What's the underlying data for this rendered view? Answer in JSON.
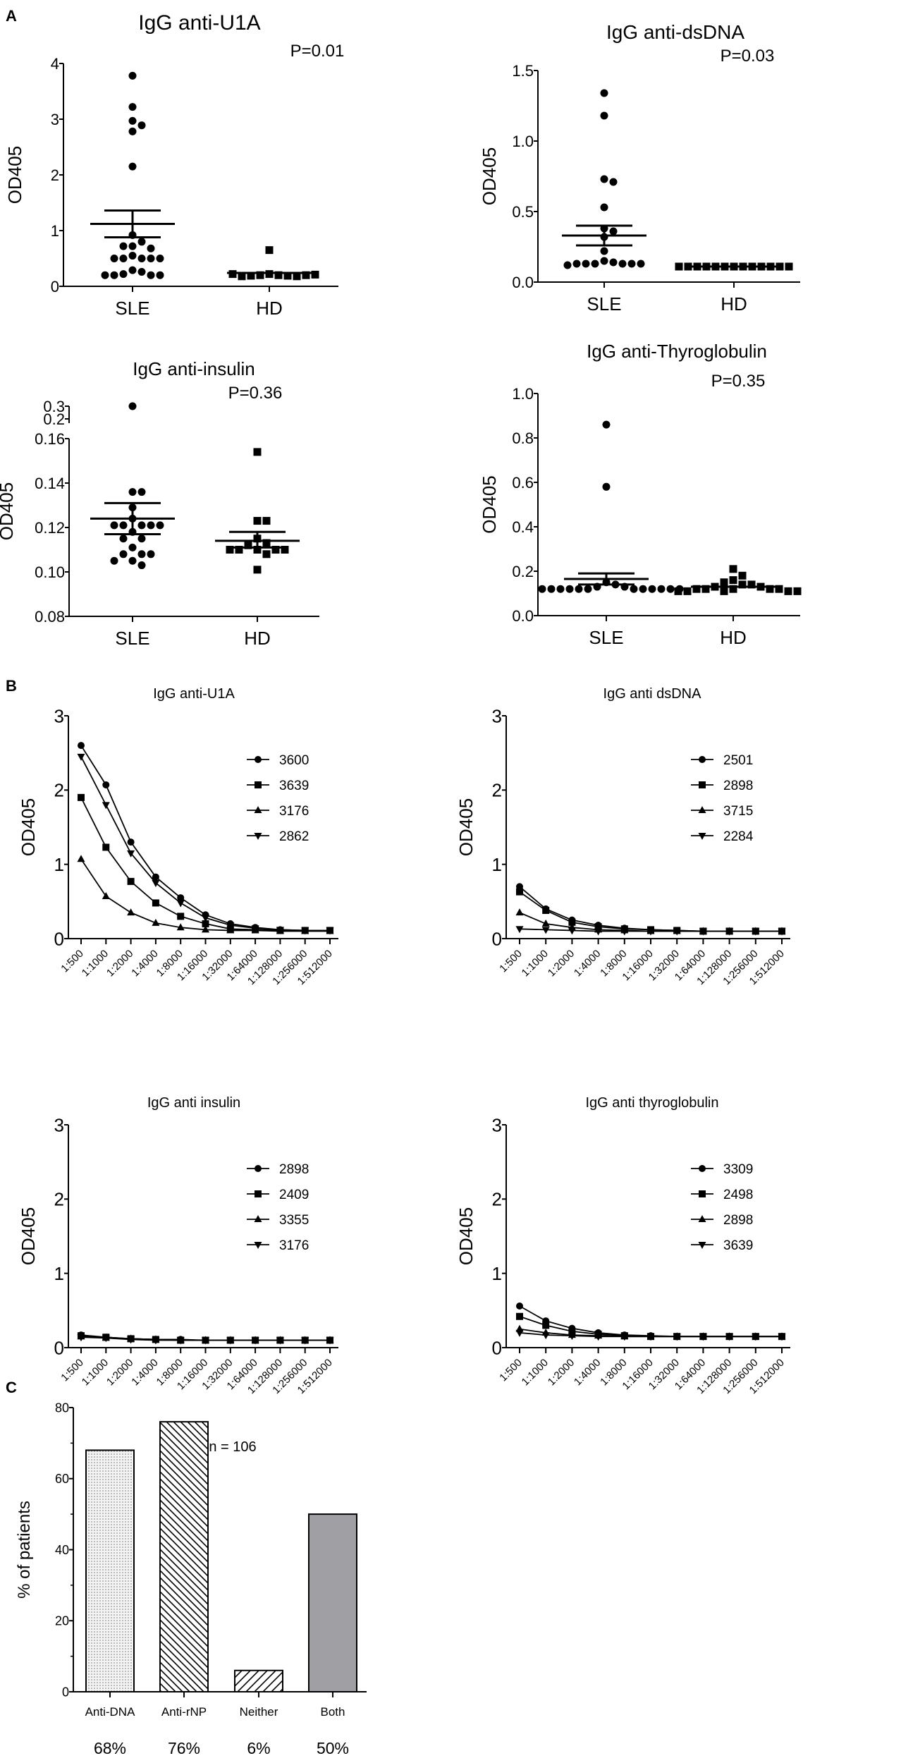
{
  "panel_labels": [
    "A",
    "B",
    "C"
  ],
  "chart_data": [
    {
      "type": "scatter",
      "panel": "A",
      "title": "IgG anti-U1A",
      "ylabel": "OD405",
      "ylim": [
        0,
        4
      ],
      "yticks": [
        "0",
        "1",
        "2",
        "3",
        "4"
      ],
      "ytick_values": [
        0,
        1,
        2,
        3,
        4
      ],
      "categories": [
        "SLE",
        "HD"
      ],
      "pvalue": "P=0.01",
      "groups": [
        {
          "name": "SLE",
          "marker": "circle",
          "values": [
            3.78,
            3.22,
            2.97,
            2.89,
            2.78,
            2.15,
            0.92,
            0.8,
            0.72,
            0.72,
            0.68,
            0.55,
            0.5,
            0.5,
            0.5,
            0.5,
            0.5,
            0.29,
            0.26,
            0.22,
            0.2,
            0.2,
            0.2,
            0.2
          ],
          "mean": 1.12,
          "sem_low": 0.88,
          "sem_high": 1.36
        },
        {
          "name": "HD",
          "marker": "square",
          "values": [
            0.65,
            0.22,
            0.2,
            0.2,
            0.19,
            0.19,
            0.18,
            0.18,
            0.2,
            0.22,
            0.21
          ],
          "mean": 0.24,
          "sem_low": 0.24,
          "sem_high": 0.24
        }
      ]
    },
    {
      "type": "scatter",
      "panel": "A",
      "title": "IgG anti-dsDNA",
      "ylabel": "OD405",
      "ylim": [
        0,
        1.5
      ],
      "yticks": [
        "0.0",
        "0.5",
        "1.0",
        "1.5"
      ],
      "ytick_values": [
        0,
        0.5,
        1,
        1.5
      ],
      "categories": [
        "SLE",
        "HD"
      ],
      "pvalue": "P=0.03",
      "groups": [
        {
          "name": "SLE",
          "marker": "circle",
          "values": [
            1.34,
            1.18,
            0.73,
            0.71,
            0.53,
            0.38,
            0.36,
            0.32,
            0.22,
            0.15,
            0.14,
            0.13,
            0.13,
            0.13,
            0.13,
            0.13,
            0.13,
            0.12
          ],
          "mean": 0.33,
          "sem_low": 0.26,
          "sem_high": 0.4
        },
        {
          "name": "HD",
          "marker": "square",
          "values": [
            0.11,
            0.11,
            0.11,
            0.11,
            0.11,
            0.11,
            0.11,
            0.11,
            0.11,
            0.11,
            0.11,
            0.11,
            0.11
          ],
          "mean": 0.11,
          "sem_low": 0.11,
          "sem_high": 0.11
        }
      ]
    },
    {
      "type": "scatter",
      "panel": "A",
      "title": "IgG anti-insulin",
      "ylabel": "OD405",
      "ylim": [
        0.08,
        0.3
      ],
      "axis_break": [
        0.16,
        0.2
      ],
      "yticks": [
        "0.08",
        "0.10",
        "0.12",
        "0.14",
        "0.16",
        "0.2",
        "0.3"
      ],
      "ytick_values": [
        0.08,
        0.1,
        0.12,
        0.14,
        0.16,
        0.2,
        0.3
      ],
      "categories": [
        "SLE",
        "HD"
      ],
      "pvalue": "P=0.36",
      "groups": [
        {
          "name": "SLE",
          "marker": "circle",
          "values": [
            0.3,
            0.136,
            0.136,
            0.129,
            0.124,
            0.121,
            0.121,
            0.121,
            0.121,
            0.121,
            0.118,
            0.115,
            0.115,
            0.111,
            0.108,
            0.108,
            0.108,
            0.105,
            0.105,
            0.103
          ],
          "mean": 0.124,
          "sem_low": 0.117,
          "sem_high": 0.131
        },
        {
          "name": "HD",
          "marker": "square",
          "values": [
            0.154,
            0.123,
            0.123,
            0.115,
            0.113,
            0.112,
            0.11,
            0.11,
            0.11,
            0.11,
            0.11,
            0.108,
            0.101
          ],
          "mean": 0.114,
          "sem_low": 0.111,
          "sem_high": 0.118
        }
      ]
    },
    {
      "type": "scatter",
      "panel": "A",
      "title": "IgG anti-Thyroglobulin",
      "ylabel": "OD405",
      "ylim": [
        0,
        1
      ],
      "yticks": [
        "0.0",
        "0.2",
        "0.4",
        "0.6",
        "0.8",
        "1.0"
      ],
      "ytick_values": [
        0,
        0.2,
        0.4,
        0.6,
        0.8,
        1
      ],
      "categories": [
        "SLE",
        "HD"
      ],
      "pvalue": "P=0.35",
      "groups": [
        {
          "name": "SLE",
          "marker": "circle",
          "values": [
            0.86,
            0.58,
            0.15,
            0.14,
            0.13,
            0.13,
            0.12,
            0.12,
            0.12,
            0.12,
            0.12,
            0.12,
            0.12,
            0.12,
            0.12,
            0.12,
            0.12,
            0.12
          ],
          "mean": 0.165,
          "sem_low": 0.14,
          "sem_high": 0.19
        },
        {
          "name": "HD",
          "marker": "square",
          "values": [
            0.21,
            0.18,
            0.16,
            0.15,
            0.14,
            0.14,
            0.13,
            0.13,
            0.12,
            0.12,
            0.12,
            0.12,
            0.12,
            0.11,
            0.11,
            0.11,
            0.11,
            0.11
          ],
          "mean": 0.13,
          "sem_low": 0.13,
          "sem_high": 0.13
        }
      ]
    },
    {
      "type": "line",
      "panel": "B",
      "title": "IgG anti-U1A",
      "ylabel": "OD405",
      "ylim": [
        0,
        3
      ],
      "yticks": [
        "0",
        "1",
        "2",
        "3"
      ],
      "ytick_values": [
        0,
        1,
        2,
        3
      ],
      "x": [
        "1:500",
        "1:1000",
        "1:2000",
        "1:4000",
        "1:8000",
        "1:16000",
        "1:32000",
        "1:64000",
        "1:128000",
        "1:256000",
        "1:512000"
      ],
      "series": [
        {
          "name": "3600",
          "marker": "circle",
          "values": [
            2.6,
            2.07,
            1.3,
            0.83,
            0.55,
            0.32,
            0.2,
            0.15,
            0.12,
            0.11,
            0.11
          ]
        },
        {
          "name": "3639",
          "marker": "square",
          "values": [
            1.9,
            1.23,
            0.77,
            0.48,
            0.3,
            0.2,
            0.13,
            0.12,
            0.11,
            0.11,
            0.11
          ]
        },
        {
          "name": "3176",
          "marker": "triangle-up",
          "values": [
            1.07,
            0.57,
            0.35,
            0.21,
            0.15,
            0.12,
            0.11,
            0.11,
            0.1,
            0.1,
            0.1
          ]
        },
        {
          "name": "2862",
          "marker": "triangle-down",
          "values": [
            2.45,
            1.8,
            1.15,
            0.75,
            0.48,
            0.28,
            0.18,
            0.14,
            0.12,
            0.11,
            0.11
          ]
        }
      ]
    },
    {
      "type": "line",
      "panel": "B",
      "title": "IgG anti dsDNA",
      "ylabel": "OD405",
      "ylim": [
        0,
        3
      ],
      "yticks": [
        "0",
        "1",
        "2",
        "3"
      ],
      "ytick_values": [
        0,
        1,
        2,
        3
      ],
      "x": [
        "1:500",
        "1:1000",
        "1:2000",
        "1:4000",
        "1:8000",
        "1:16000",
        "1:32000",
        "1:64000",
        "1:128000",
        "1:256000",
        "1:512000"
      ],
      "series": [
        {
          "name": "2501",
          "marker": "circle",
          "values": [
            0.7,
            0.4,
            0.25,
            0.18,
            0.14,
            0.12,
            0.11,
            0.1,
            0.1,
            0.1,
            0.1
          ]
        },
        {
          "name": "2898",
          "marker": "square",
          "values": [
            0.63,
            0.38,
            0.22,
            0.16,
            0.13,
            0.12,
            0.11,
            0.1,
            0.1,
            0.1,
            0.1
          ]
        },
        {
          "name": "3715",
          "marker": "triangle-up",
          "values": [
            0.35,
            0.2,
            0.15,
            0.12,
            0.11,
            0.1,
            0.1,
            0.1,
            0.1,
            0.1,
            0.1
          ]
        },
        {
          "name": "2284",
          "marker": "triangle-down",
          "values": [
            0.13,
            0.12,
            0.11,
            0.1,
            0.1,
            0.1,
            0.1,
            0.1,
            0.1,
            0.1,
            0.1
          ]
        }
      ]
    },
    {
      "type": "line",
      "panel": "B",
      "title": "IgG anti insulin",
      "ylabel": "OD405",
      "ylim": [
        0,
        3
      ],
      "yticks": [
        "0",
        "1",
        "2",
        "3"
      ],
      "ytick_values": [
        0,
        1,
        2,
        3
      ],
      "x": [
        "1:500",
        "1:1000",
        "1:2000",
        "1:4000",
        "1:8000",
        "1:16000",
        "1:32000",
        "1:64000",
        "1:128000",
        "1:256000",
        "1:512000"
      ],
      "series": [
        {
          "name": "2898",
          "marker": "circle",
          "values": [
            0.17,
            0.14,
            0.12,
            0.11,
            0.11,
            0.1,
            0.1,
            0.1,
            0.1,
            0.1,
            0.1
          ]
        },
        {
          "name": "2409",
          "marker": "square",
          "values": [
            0.16,
            0.14,
            0.12,
            0.11,
            0.1,
            0.1,
            0.1,
            0.1,
            0.1,
            0.1,
            0.1
          ]
        },
        {
          "name": "3355",
          "marker": "triangle-up",
          "values": [
            0.15,
            0.13,
            0.12,
            0.11,
            0.1,
            0.1,
            0.1,
            0.1,
            0.1,
            0.1,
            0.1
          ]
        },
        {
          "name": "3176",
          "marker": "triangle-down",
          "values": [
            0.14,
            0.13,
            0.11,
            0.1,
            0.1,
            0.1,
            0.1,
            0.1,
            0.1,
            0.1,
            0.1
          ]
        }
      ]
    },
    {
      "type": "line",
      "panel": "B",
      "title": "IgG anti thyroglobulin",
      "ylabel": "OD405",
      "ylim": [
        0,
        3
      ],
      "yticks": [
        "0",
        "1",
        "2",
        "3"
      ],
      "ytick_values": [
        0,
        1,
        2,
        3
      ],
      "x": [
        "1:500",
        "1:1000",
        "1:2000",
        "1:4000",
        "1:8000",
        "1:16000",
        "1:32000",
        "1:64000",
        "1:128000",
        "1:256000",
        "1:512000"
      ],
      "series": [
        {
          "name": "3309",
          "marker": "circle",
          "values": [
            0.56,
            0.36,
            0.26,
            0.2,
            0.17,
            0.16,
            0.15,
            0.15,
            0.15,
            0.15,
            0.15
          ]
        },
        {
          "name": "2498",
          "marker": "square",
          "values": [
            0.42,
            0.3,
            0.22,
            0.18,
            0.16,
            0.15,
            0.15,
            0.15,
            0.15,
            0.15,
            0.15
          ]
        },
        {
          "name": "2898",
          "marker": "triangle-up",
          "values": [
            0.25,
            0.2,
            0.17,
            0.16,
            0.15,
            0.15,
            0.15,
            0.15,
            0.15,
            0.15,
            0.15
          ]
        },
        {
          "name": "3639",
          "marker": "triangle-down",
          "values": [
            0.2,
            0.17,
            0.16,
            0.15,
            0.15,
            0.15,
            0.15,
            0.15,
            0.15,
            0.15,
            0.15
          ]
        }
      ]
    },
    {
      "type": "bar",
      "panel": "C",
      "title": "",
      "ylabel": "% of patients",
      "ylim": [
        0,
        80
      ],
      "yticks": [
        "0",
        "20",
        "40",
        "60",
        "80"
      ],
      "ytick_values": [
        0,
        20,
        40,
        60,
        80
      ],
      "categories": [
        "Anti-DNA",
        "Anti-rNP",
        "Neither",
        "Both"
      ],
      "values": [
        68,
        76,
        6,
        50
      ],
      "value_labels": [
        "68%",
        "76%",
        "6%",
        "50%"
      ],
      "fills": [
        "dots",
        "back-diagonal",
        "diagonal",
        "#a0a0a4"
      ],
      "annotation": "n = 106"
    }
  ]
}
